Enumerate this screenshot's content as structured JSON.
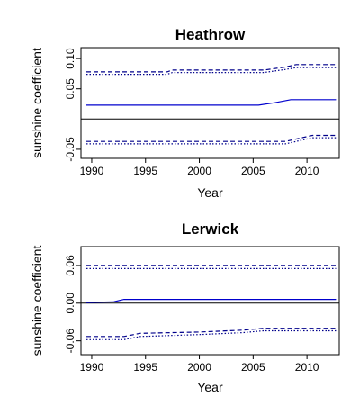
{
  "chart_data": [
    {
      "type": "line",
      "title": "Heathrow",
      "xlabel": "Year",
      "ylabel": "sunshine coefficient",
      "xlim": [
        1989,
        2013
      ],
      "ylim": [
        -0.065,
        0.118
      ],
      "xticks": [
        "1990",
        "1995",
        "2000",
        "2005",
        "2010"
      ],
      "yticks": [
        "-0.05",
        "0.05",
        "0.10"
      ],
      "zero_line": true,
      "grid": false,
      "series": [
        {
          "style": "dashed",
          "color": "#00008b",
          "x": [
            1989.5,
            1997,
            1997.5,
            2006,
            2008,
            2009,
            2012.7
          ],
          "y": [
            0.078,
            0.078,
            0.081,
            0.081,
            0.086,
            0.09,
            0.09
          ]
        },
        {
          "style": "dotted",
          "color": "#00008b",
          "x": [
            1989.5,
            1997,
            1997.5,
            2006,
            2008,
            2009,
            2012.7
          ],
          "y": [
            0.074,
            0.074,
            0.077,
            0.077,
            0.082,
            0.085,
            0.085
          ]
        },
        {
          "style": "solid",
          "color": "#0000cd",
          "x": [
            1989.5,
            2005.5,
            2007,
            2008.5,
            2012.7
          ],
          "y": [
            0.023,
            0.023,
            0.027,
            0.032,
            0.032
          ]
        },
        {
          "style": "dashed",
          "color": "#00008b",
          "x": [
            1989.5,
            2008,
            2009,
            2010.5,
            2012.7
          ],
          "y": [
            -0.037,
            -0.037,
            -0.033,
            -0.027,
            -0.027
          ]
        },
        {
          "style": "dotted",
          "color": "#00008b",
          "x": [
            1989.5,
            2008,
            2009,
            2010.5,
            2012.7
          ],
          "y": [
            -0.041,
            -0.041,
            -0.037,
            -0.031,
            -0.031
          ]
        }
      ]
    },
    {
      "type": "line",
      "title": "Lerwick",
      "xlabel": "Year",
      "ylabel": "sunshine coefficient",
      "xlim": [
        1989,
        2013
      ],
      "ylim": [
        -0.082,
        0.09
      ],
      "xticks": [
        "1990",
        "1995",
        "2000",
        "2005",
        "2010"
      ],
      "yticks": [
        "-0.06",
        "0.00",
        "0.06"
      ],
      "zero_line": true,
      "grid": false,
      "series": [
        {
          "style": "dashed",
          "color": "#00008b",
          "x": [
            1989.5,
            2012.7
          ],
          "y": [
            0.06,
            0.06
          ]
        },
        {
          "style": "dotted",
          "color": "#00008b",
          "x": [
            1989.5,
            2012.7
          ],
          "y": [
            0.055,
            0.055
          ]
        },
        {
          "style": "solid",
          "color": "#0000cd",
          "x": [
            1989.5,
            1992,
            1993,
            2012.7
          ],
          "y": [
            0.001,
            0.002,
            0.006,
            0.006
          ]
        },
        {
          "style": "dashed",
          "color": "#00008b",
          "x": [
            1989.5,
            1993,
            1994.5,
            2000,
            2004,
            2006,
            2012.7
          ],
          "y": [
            -0.053,
            -0.053,
            -0.048,
            -0.046,
            -0.043,
            -0.04,
            -0.04
          ]
        },
        {
          "style": "dotted",
          "color": "#00008b",
          "x": [
            1989.5,
            1993,
            1994.5,
            2000,
            2004,
            2006,
            2012.7
          ],
          "y": [
            -0.058,
            -0.058,
            -0.053,
            -0.05,
            -0.047,
            -0.044,
            -0.044
          ]
        }
      ]
    }
  ]
}
